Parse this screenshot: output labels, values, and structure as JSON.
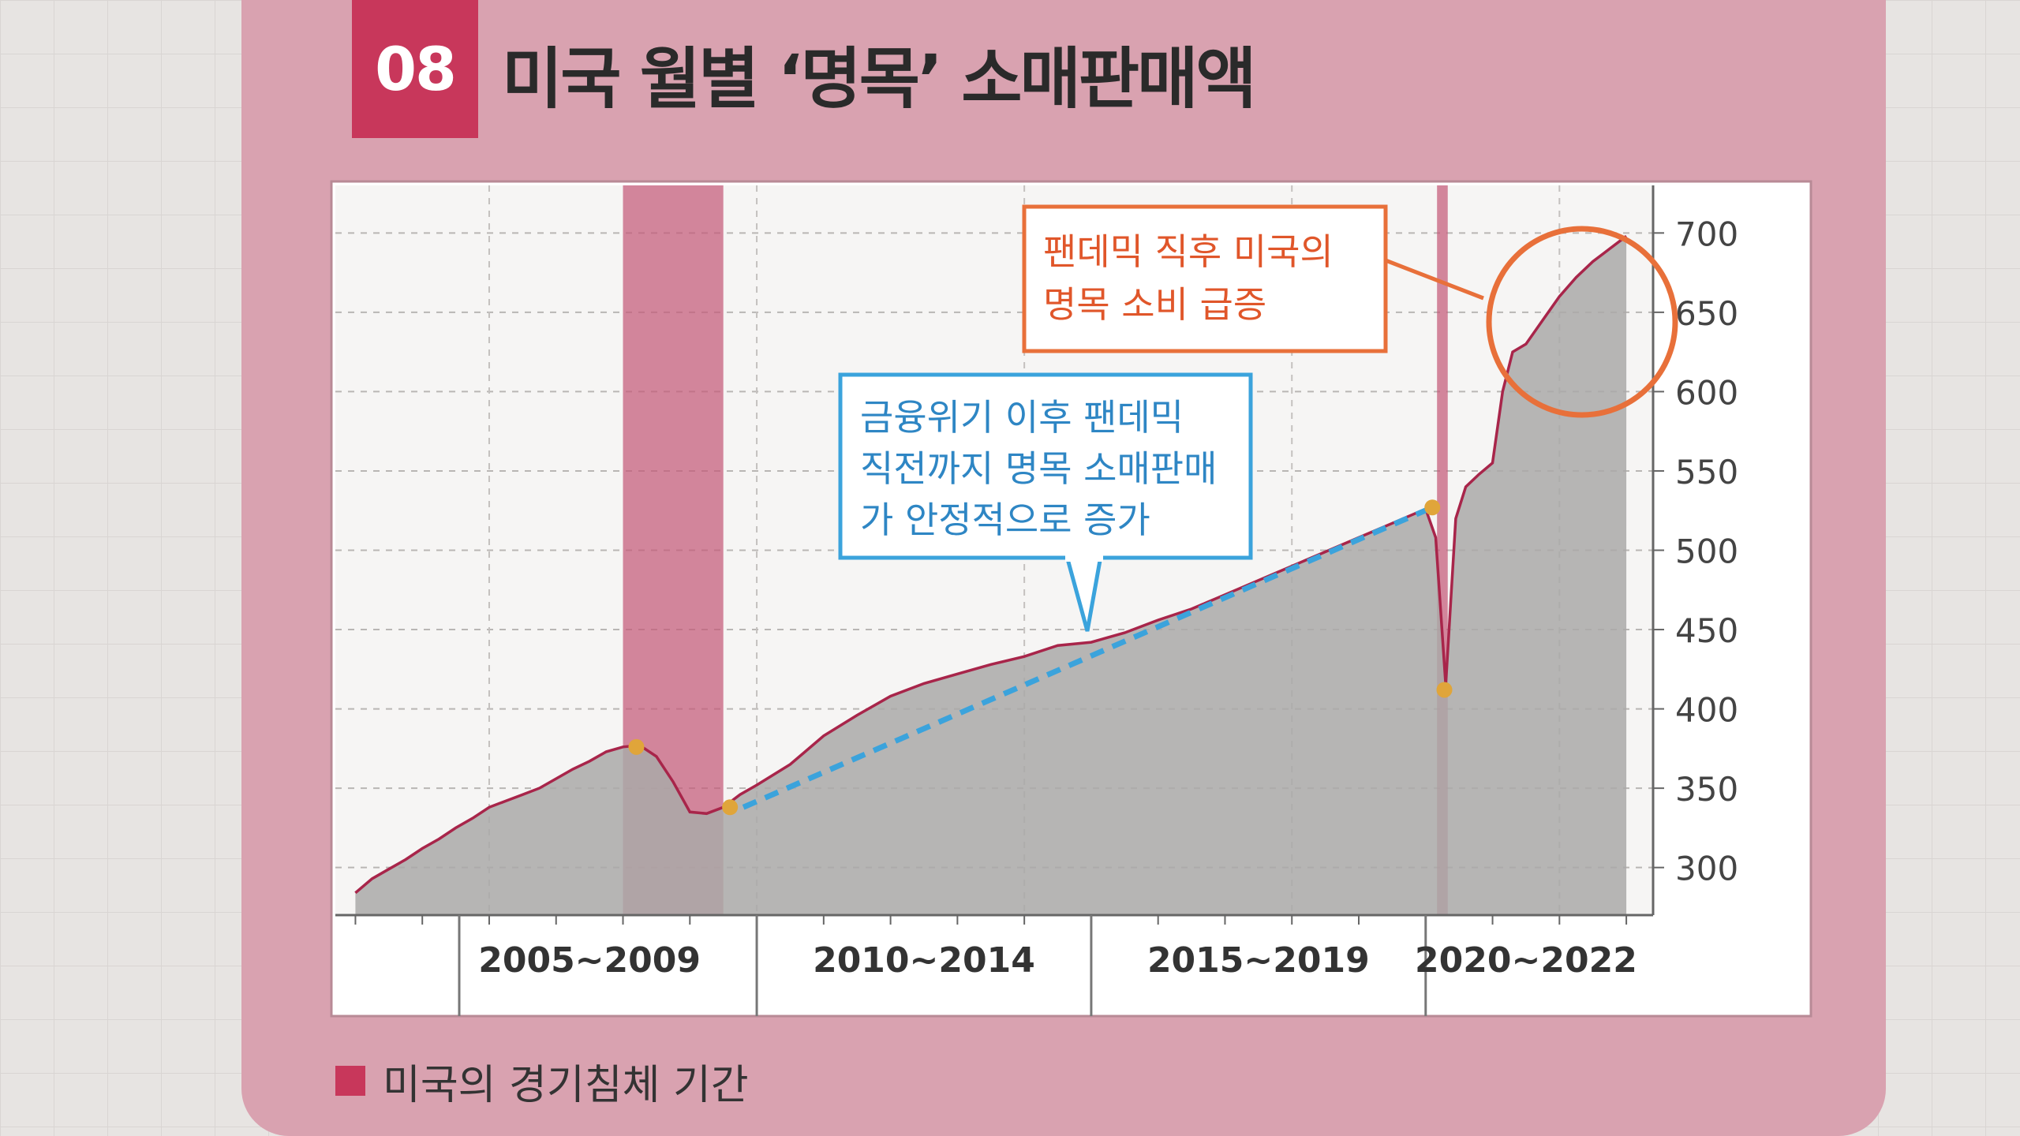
{
  "header": {
    "badge": "08",
    "title": "미국 월별 ‘명목’ 소매판매액"
  },
  "legend": {
    "label": "미국의 경기침체 기간"
  },
  "annotations": {
    "pandemic": [
      "팬데믹 직후 미국의",
      "명목 소비 급증"
    ],
    "trend": [
      "금융위기 이후 팬데믹",
      "직전까지 명목 소매판매",
      "가 안정적으로 증가"
    ]
  },
  "colors": {
    "panel": "#d9a2b0",
    "accent": "#c8375b",
    "series_line": "#a8254a",
    "area_fill": "#aaa9a8",
    "recession_band": "#c45a78",
    "trend_line": "#3ba3dc",
    "pandemic_callout": "#e8703a",
    "marker": "#e0a53a"
  },
  "chart_data": {
    "type": "area",
    "title": "미국 월별 ‘명목’ 소매판매액",
    "xlim": [
      2003.7,
      2023.4
    ],
    "ylim": [
      270,
      730
    ],
    "y_ticks": [
      300,
      350,
      400,
      450,
      500,
      550,
      600,
      650,
      700
    ],
    "x_group_labels": [
      {
        "label": "2005~2009",
        "from": 2005,
        "to": 2010
      },
      {
        "label": "2010~2014",
        "from": 2010,
        "to": 2015
      },
      {
        "label": "2015~2019",
        "from": 2015,
        "to": 2020
      },
      {
        "label": "2020~2022",
        "from": 2020,
        "to": 2023
      }
    ],
    "recessions": [
      [
        2008.0,
        2009.5
      ],
      [
        2020.17,
        2020.33
      ]
    ],
    "series": [
      {
        "values_x": [
          2004.0,
          2004.25,
          2004.5,
          2004.75,
          2005.0,
          2005.25,
          2005.5,
          2005.75,
          2006.0,
          2006.25,
          2006.5,
          2006.75,
          2007.0,
          2007.25,
          2007.5,
          2007.75,
          2008.0,
          2008.25,
          2008.5,
          2008.75,
          2009.0,
          2009.25,
          2009.5,
          2009.75,
          2010.0,
          2010.5,
          2011.0,
          2011.5,
          2012.0,
          2012.5,
          2013.0,
          2013.5,
          2014.0,
          2014.5,
          2015.0,
          2015.5,
          2016.0,
          2016.5,
          2017.0,
          2017.5,
          2018.0,
          2018.5,
          2019.0,
          2019.5,
          2020.0,
          2020.15,
          2020.3,
          2020.45,
          2020.6,
          2020.8,
          2021.0,
          2021.15,
          2021.3,
          2021.5,
          2021.75,
          2022.0,
          2022.25,
          2022.5,
          2022.75,
          2023.0
        ],
        "values_y": [
          284,
          293,
          299,
          305,
          312,
          318,
          325,
          331,
          338,
          342,
          346,
          350,
          356,
          362,
          367,
          373,
          376,
          377,
          370,
          354,
          335,
          334,
          338,
          346,
          352,
          365,
          383,
          396,
          408,
          416,
          422,
          428,
          433,
          440,
          442,
          448,
          456,
          463,
          472,
          481,
          490,
          499,
          508,
          517,
          526,
          508,
          415,
          520,
          540,
          548,
          555,
          600,
          625,
          630,
          645,
          660,
          672,
          682,
          690,
          698
        ]
      }
    ],
    "trend_segment": {
      "from": [
        2009.8,
        338
      ],
      "to": [
        2020.1,
        527
      ]
    },
    "markers": [
      [
        2008.2,
        376
      ],
      [
        2009.6,
        338
      ],
      [
        2020.1,
        527
      ],
      [
        2020.28,
        412
      ]
    ],
    "grid": true,
    "legend_position": "bottom-left"
  }
}
